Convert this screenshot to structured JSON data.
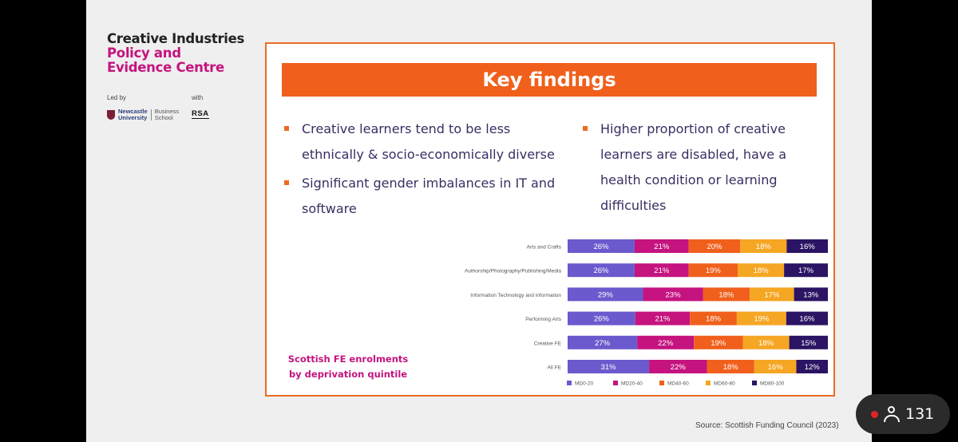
{
  "brand": {
    "line1": "Creative Industries",
    "line2": "Policy and",
    "line3": "Evidence Centre"
  },
  "led_by": "Led by",
  "with": "with",
  "university": {
    "name1": "Newcastle",
    "name2": "University",
    "school1": "Business",
    "school2": "School"
  },
  "rsa": "RSA",
  "heading": "Key findings",
  "bullets": [
    "Creative learners tend to be less ethnically & socio-economically diverse",
    "Significant gender imbalances in IT and software",
    "Higher proportion of creative learners are disabled, have a health condition or learning difficulties"
  ],
  "chart_data": {
    "type": "bar",
    "stacked": true,
    "orientation": "horizontal",
    "title": "Scottish FE enrolments by deprivation quintile",
    "categories": [
      "Arts and Crafts",
      "Authorship/Photography/Publishing/Media",
      "Information Technology and information",
      "Performing Arts",
      "Creative FE",
      "All FE"
    ],
    "series": [
      {
        "name": "MD0-20",
        "color": "#6a5acd",
        "values": [
          26,
          26,
          29,
          26,
          27,
          31
        ]
      },
      {
        "name": "MD20-40",
        "color": "#c5137f",
        "values": [
          21,
          21,
          23,
          21,
          22,
          22
        ]
      },
      {
        "name": "MD40-60",
        "color": "#f0601c",
        "values": [
          20,
          19,
          18,
          18,
          19,
          18
        ]
      },
      {
        "name": "MD60-80",
        "color": "#f5a623",
        "values": [
          18,
          18,
          17,
          19,
          18,
          16
        ]
      },
      {
        "name": "MD80-100",
        "color": "#2b1463",
        "values": [
          16,
          17,
          13,
          16,
          15,
          12
        ]
      }
    ],
    "legend": "bottom"
  },
  "source": "Source: Scottish Funding Council (2023)",
  "viewers": "131"
}
